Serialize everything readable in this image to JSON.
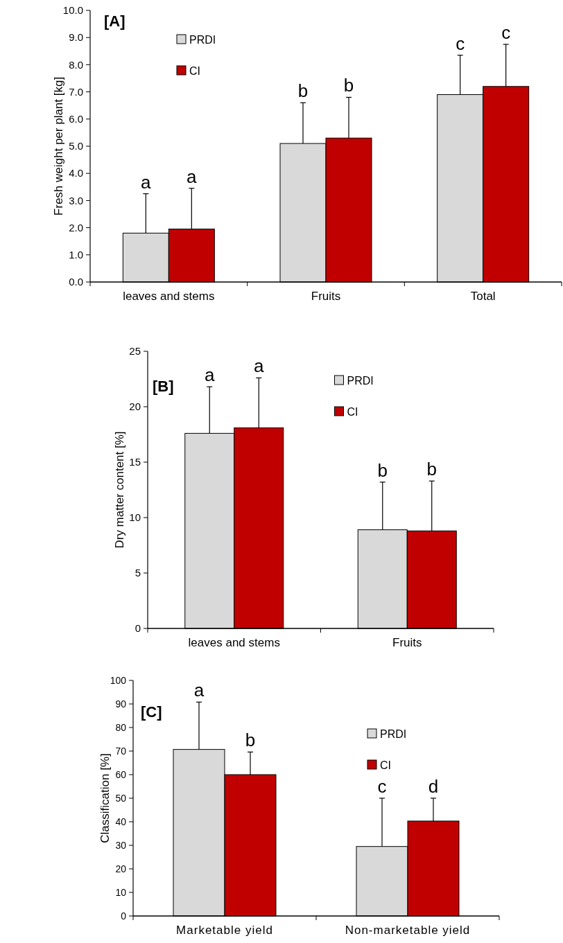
{
  "chart_data": [
    {
      "type": "bar",
      "title": "[A]",
      "ylabel": "Fresh weight per plant [kg]",
      "categories": [
        "leaves and stems",
        "Fruits",
        "Total"
      ],
      "ylim": [
        0,
        10
      ],
      "yticks": [
        {
          "value": 0,
          "label": "0.0"
        },
        {
          "value": 1,
          "label": "1.0"
        },
        {
          "value": 2,
          "label": "2.0"
        },
        {
          "value": 3,
          "label": "3.0"
        },
        {
          "value": 4,
          "label": "4.0"
        },
        {
          "value": 5,
          "label": "5.0"
        },
        {
          "value": 6,
          "label": "6.0"
        },
        {
          "value": 7,
          "label": "7.0"
        },
        {
          "value": 8,
          "label": "8.0"
        },
        {
          "value": 9,
          "label": "9.0"
        },
        {
          "value": 10,
          "label": "10.0"
        }
      ],
      "legend": "top left",
      "grid": false,
      "series": [
        {
          "name": "PRDI",
          "color": "#d9d9d9",
          "values": [
            1.8,
            5.1,
            6.9
          ],
          "errors": [
            [
              1.8,
              3.25
            ],
            [
              5.1,
              6.6
            ],
            [
              6.9,
              8.35
            ]
          ]
        },
        {
          "name": "CI",
          "color": "#c00000",
          "values": [
            1.95,
            5.3,
            7.2
          ],
          "errors": [
            [
              1.95,
              3.45
            ],
            [
              5.3,
              6.8
            ],
            [
              7.2,
              8.75
            ]
          ]
        }
      ],
      "annotations": [
        "a",
        "a",
        "b",
        "b",
        "c",
        "c"
      ]
    },
    {
      "type": "bar",
      "title": "[B]",
      "ylabel": "Dry matter content [%]",
      "categories": [
        "leaves and stems",
        "Fruits"
      ],
      "ylim": [
        0,
        25
      ],
      "yticks": [
        0,
        5,
        10,
        15,
        20,
        25
      ],
      "legend": "top",
      "grid": false,
      "series": [
        {
          "name": "PRDI",
          "color": "#d9d9d9",
          "values": [
            17.6,
            8.9
          ],
          "errors": [
            [
              17.6,
              21.8
            ],
            [
              8.9,
              13.2
            ]
          ]
        },
        {
          "name": "CI",
          "color": "#c00000",
          "values": [
            18.1,
            8.8
          ],
          "errors": [
            [
              18.1,
              22.6
            ],
            [
              8.8,
              13.3
            ]
          ]
        }
      ],
      "annotations": [
        "a",
        "a",
        "b",
        "b"
      ]
    },
    {
      "type": "bar",
      "title": "[C]",
      "ylabel": "Classification [%]",
      "categories": [
        "Marketable yield",
        "Non-marketable yield"
      ],
      "ylim": [
        0,
        100
      ],
      "yticks": [
        0,
        10,
        20,
        30,
        40,
        50,
        60,
        70,
        80,
        90,
        100
      ],
      "legend": "top right",
      "grid": false,
      "series": [
        {
          "name": "PRDI",
          "color": "#d9d9d9",
          "values": [
            70.7,
            29.5
          ],
          "errors": [
            [
              70.7,
              90.8
            ],
            [
              29.5,
              50
            ]
          ]
        },
        {
          "name": "CI",
          "color": "#c00000",
          "values": [
            60,
            40.3
          ],
          "errors": [
            [
              60,
              69.6
            ],
            [
              40.3,
              50
            ]
          ]
        }
      ],
      "annotations": [
        "a",
        "b",
        "c",
        "d"
      ]
    }
  ]
}
